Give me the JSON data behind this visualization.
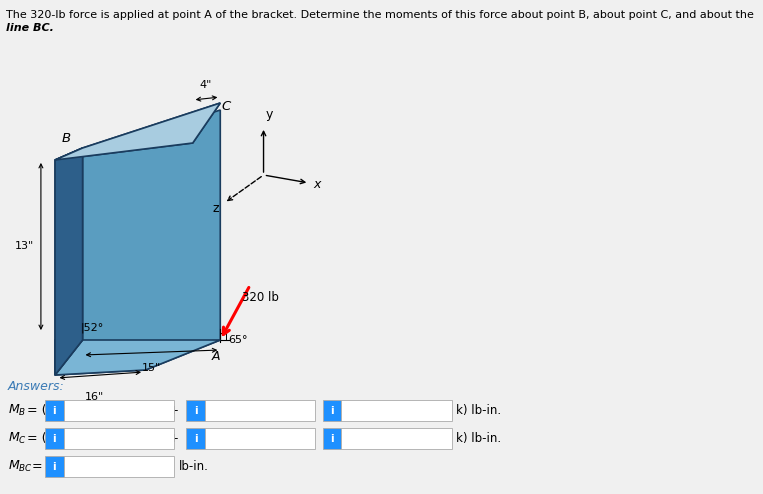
{
  "title_line1": "The 320-lb force is applied at point A of the bracket. Determine the moments of this force about point B, about point C, and about the",
  "title_line2": "line BC.",
  "bg_color": "#f0f0f0",
  "answers_label": "Answers:",
  "dim_4": "4\"",
  "dim_13": "13\"",
  "dim_16": "16\"",
  "dim_15": "15\"",
  "dim_52": "52°",
  "dim_65": "65°",
  "force_label": "320 lb",
  "point_B": "B",
  "point_C": "C",
  "point_A": "A",
  "axis_x": "x",
  "axis_y": "y",
  "axis_z": "z",
  "blue_box_color": "#1e90ff",
  "face_dark": "#2d5f8a",
  "face_mid": "#5a9dc0",
  "face_light": "#a8cce0",
  "face_mid2": "#7ab5d5",
  "edge_color": "#1a3c5e",
  "text_color_title": "#3a7ab5",
  "answers_color": "#3a7ab5"
}
